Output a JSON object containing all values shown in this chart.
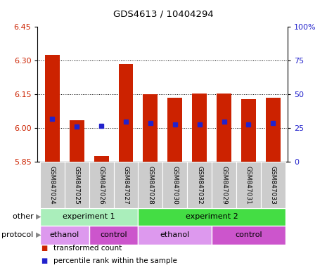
{
  "title": "GDS4613 / 10404294",
  "samples": [
    "GSM847024",
    "GSM847025",
    "GSM847026",
    "GSM847027",
    "GSM847028",
    "GSM847030",
    "GSM847032",
    "GSM847029",
    "GSM847031",
    "GSM847033"
  ],
  "transformed_count": [
    6.325,
    6.035,
    5.875,
    6.285,
    6.15,
    6.135,
    6.155,
    6.155,
    6.13,
    6.135
  ],
  "baseline": 5.85,
  "percentile_rank": [
    32,
    26,
    27,
    30,
    29,
    28,
    28,
    30,
    28,
    29
  ],
  "ylim_left": [
    5.85,
    6.45
  ],
  "ylim_right": [
    0,
    100
  ],
  "yticks_left": [
    5.85,
    6.0,
    6.15,
    6.3,
    6.45
  ],
  "yticks_right": [
    0,
    25,
    50,
    75,
    100
  ],
  "ytick_labels_right": [
    "0",
    "25",
    "50",
    "75",
    "100%"
  ],
  "grid_lines": [
    6.0,
    6.15,
    6.3
  ],
  "bar_color": "#cc2200",
  "dot_color": "#2222cc",
  "experiment_groups": [
    {
      "label": "experiment 1",
      "start": 0,
      "end": 4,
      "color": "#aaeebb"
    },
    {
      "label": "experiment 2",
      "start": 4,
      "end": 10,
      "color": "#44dd44"
    }
  ],
  "protocol_groups": [
    {
      "label": "ethanol",
      "start": 0,
      "end": 2,
      "color": "#dd99ee"
    },
    {
      "label": "control",
      "start": 2,
      "end": 4,
      "color": "#cc55cc"
    },
    {
      "label": "ethanol",
      "start": 4,
      "end": 7,
      "color": "#dd99ee"
    },
    {
      "label": "control",
      "start": 7,
      "end": 10,
      "color": "#cc55cc"
    }
  ],
  "legend_items": [
    {
      "label": "transformed count",
      "color": "#cc2200"
    },
    {
      "label": "percentile rank within the sample",
      "color": "#2222cc"
    }
  ],
  "left_label_color": "#cc2200",
  "right_label_color": "#2222cc",
  "other_label": "other",
  "protocol_label": "protocol",
  "bg_color_xticklabels": "#cccccc",
  "bar_width": 0.6
}
